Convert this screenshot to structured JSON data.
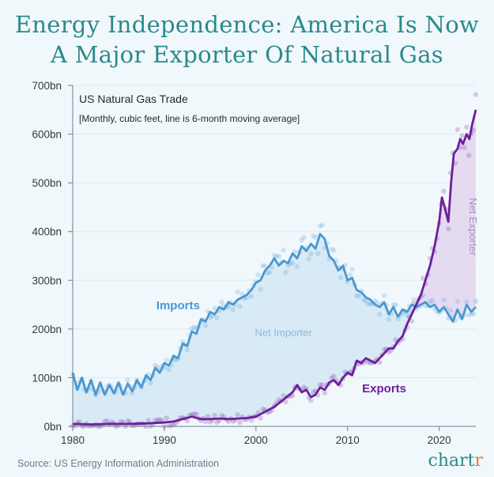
{
  "title_line1": "Energy Independence: America Is Now",
  "title_line2": "A Major Exporter Of Natural Gas",
  "source": "Source: US Energy Information Administration",
  "brand": {
    "text": "chart",
    "accent": "r"
  },
  "colors": {
    "background": "#f1f8fb",
    "title": "#2a8a8c",
    "imports": "#4a97d2",
    "exports": "#6e1e9c",
    "net_importer_fill": "#d3e8f4",
    "net_exporter_fill": "#e2d6ee",
    "brand_accent": "#e37b38"
  },
  "chart_data": {
    "type": "line",
    "title": "US Natural Gas Trade",
    "subtitle": "[Monthly, cubic feet, line is 6-month moving average]",
    "xlabel": "",
    "ylabel": "",
    "xlim": [
      1980,
      2024
    ],
    "ylim": [
      0,
      700
    ],
    "x_ticks": [
      1980,
      1990,
      2000,
      2010,
      2020
    ],
    "y_ticks": [
      {
        "value": 0,
        "label": "0bn"
      },
      {
        "value": 100,
        "label": "100bn"
      },
      {
        "value": 200,
        "label": "200bn"
      },
      {
        "value": 300,
        "label": "300bn"
      },
      {
        "value": 400,
        "label": "400bn"
      },
      {
        "value": 500,
        "label": "500bn"
      },
      {
        "value": 600,
        "label": "600bn"
      },
      {
        "value": 700,
        "label": "700bn"
      }
    ],
    "grid": true,
    "series": [
      {
        "name": "Imports",
        "x": [
          1980,
          1980.5,
          1981,
          1981.5,
          1982,
          1982.5,
          1983,
          1983.5,
          1984,
          1984.5,
          1985,
          1985.5,
          1986,
          1986.5,
          1987,
          1987.5,
          1988,
          1988.5,
          1989,
          1989.5,
          1990,
          1990.5,
          1991,
          1991.5,
          1992,
          1992.5,
          1993,
          1993.5,
          1994,
          1994.5,
          1995,
          1995.5,
          1996,
          1996.5,
          1997,
          1997.5,
          1998,
          1998.5,
          1999,
          1999.5,
          2000,
          2000.5,
          2001,
          2001.5,
          2002,
          2002.5,
          2003,
          2003.5,
          2004,
          2004.5,
          2005,
          2005.5,
          2006,
          2006.5,
          2007,
          2007.5,
          2008,
          2008.5,
          2009,
          2009.5,
          2010,
          2010.5,
          2011,
          2011.5,
          2012,
          2012.5,
          2013,
          2013.5,
          2014,
          2014.5,
          2015,
          2015.5,
          2016,
          2016.5,
          2017,
          2017.5,
          2018,
          2018.5,
          2019,
          2019.5,
          2020,
          2020.5,
          2021,
          2021.5,
          2022,
          2022.5,
          2023,
          2023.5,
          2024
        ],
        "values": [
          110,
          75,
          100,
          70,
          95,
          65,
          90,
          65,
          85,
          68,
          90,
          65,
          88,
          72,
          95,
          80,
          105,
          95,
          120,
          110,
          130,
          125,
          145,
          140,
          170,
          165,
          195,
          190,
          220,
          215,
          235,
          230,
          245,
          240,
          255,
          250,
          260,
          265,
          270,
          280,
          295,
          300,
          320,
          330,
          345,
          330,
          340,
          335,
          355,
          345,
          370,
          360,
          375,
          365,
          395,
          385,
          350,
          340,
          320,
          330,
          300,
          305,
          280,
          275,
          265,
          260,
          250,
          245,
          255,
          230,
          245,
          225,
          240,
          235,
          250,
          245,
          250,
          255,
          245,
          250,
          235,
          245,
          230,
          215,
          240,
          220,
          250,
          235,
          245
        ],
        "point_label": "Imports",
        "label_at": [
          1991.5,
          240
        ]
      },
      {
        "name": "Exports",
        "x": [
          1980,
          1982,
          1984,
          1986,
          1988,
          1990,
          1991,
          1992,
          1993,
          1994,
          1995,
          1996,
          1997,
          1998,
          1999,
          2000,
          2001,
          2002,
          2003,
          2004,
          2004.5,
          2005,
          2005.5,
          2006,
          2006.5,
          2007,
          2007.5,
          2008,
          2008.5,
          2009,
          2009.5,
          2010,
          2010.5,
          2011,
          2011.5,
          2012,
          2012.5,
          2013,
          2013.5,
          2014,
          2014.5,
          2015,
          2015.5,
          2016,
          2016.5,
          2017,
          2017.5,
          2018,
          2018.5,
          2019,
          2019.5,
          2020,
          2020.3,
          2020.6,
          2021,
          2021.3,
          2021.6,
          2022,
          2022.3,
          2022.6,
          2023,
          2023.3,
          2023.6,
          2024
        ],
        "values": [
          5,
          4,
          5,
          5,
          6,
          8,
          10,
          15,
          20,
          15,
          15,
          16,
          15,
          16,
          17,
          20,
          30,
          40,
          55,
          70,
          85,
          70,
          75,
          60,
          65,
          80,
          75,
          90,
          95,
          85,
          100,
          110,
          105,
          135,
          130,
          140,
          135,
          130,
          140,
          150,
          160,
          160,
          175,
          185,
          210,
          230,
          250,
          270,
          300,
          330,
          370,
          420,
          470,
          450,
          420,
          500,
          560,
          570,
          590,
          580,
          600,
          590,
          620,
          650
        ],
        "point_label": "Exports",
        "label_at": [
          2014,
          70
        ]
      }
    ],
    "annotations": [
      {
        "text": "Net Importer",
        "x": 2003,
        "y": 185,
        "rotate": 0
      },
      {
        "text": "Net Exporter",
        "x": 2023.3,
        "y": 410,
        "rotate": 90
      }
    ]
  }
}
